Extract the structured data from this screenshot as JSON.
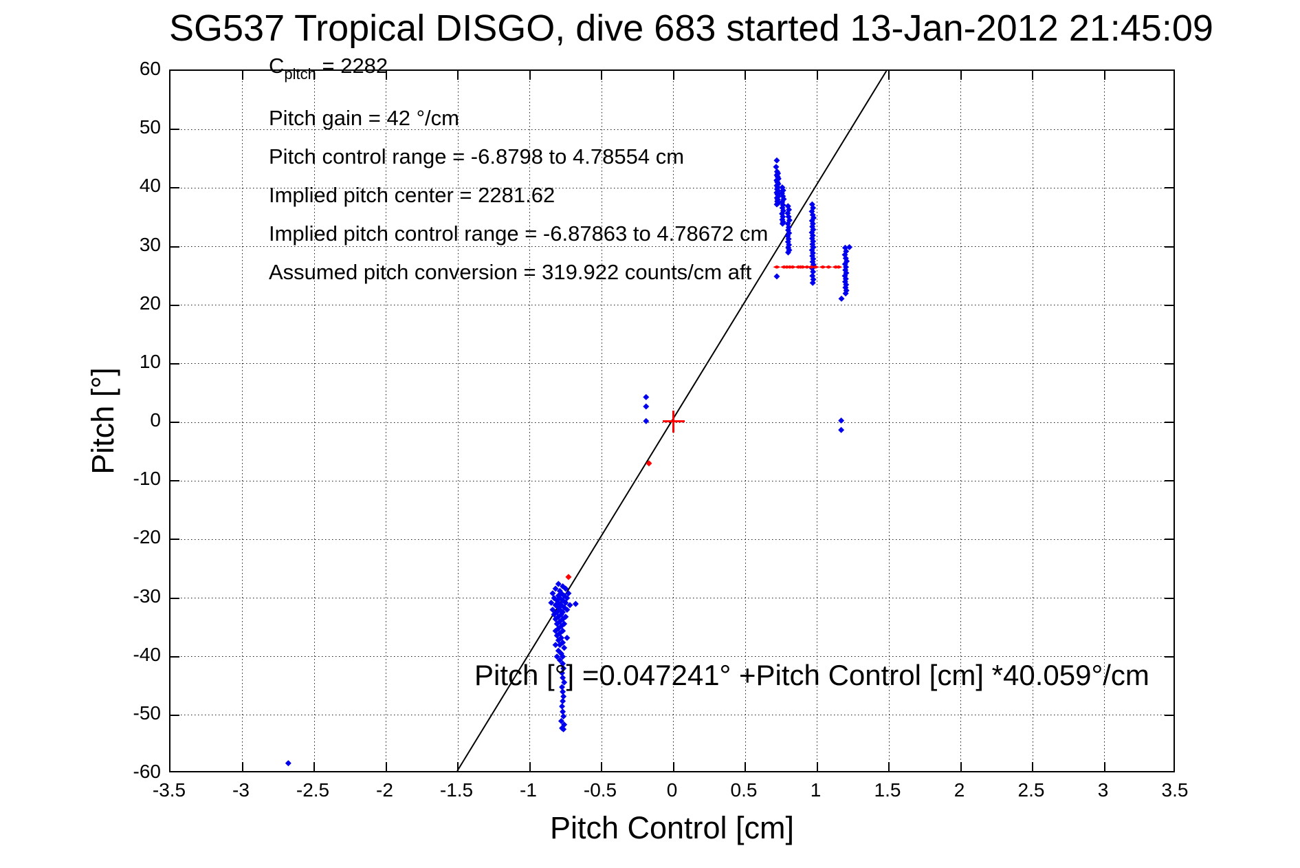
{
  "figure": {
    "title": "SG537 Tropical DISGO, dive 683 started 13-Jan-2012 21:45:09",
    "background_color": "#FFFFFF"
  },
  "chart_data": {
    "type": "scatter",
    "title": "SG537 Tropical DISGO, dive 683 started 13-Jan-2012 21:45:09",
    "xlabel": "Pitch Control [cm]",
    "ylabel": "Pitch [°]",
    "xlim": [
      -3.5,
      3.5
    ],
    "ylim": [
      -60,
      60
    ],
    "xticks": [
      -3.5,
      -3,
      -2.5,
      -2,
      -1.5,
      -1,
      -0.5,
      0,
      0.5,
      1,
      1.5,
      2,
      2.5,
      3,
      3.5
    ],
    "xtick_labels": [
      "-3.5",
      "-3",
      "-2.5",
      "-2",
      "-1.5",
      "-1",
      "-0.5",
      "0",
      "0.5",
      "1",
      "1.5",
      "2",
      "2.5",
      "3",
      "3.5"
    ],
    "yticks": [
      60,
      50,
      40,
      30,
      20,
      10,
      0,
      -10,
      -20,
      -30,
      -40,
      -50,
      -60
    ],
    "ytick_labels": [
      "60",
      "50",
      "40",
      "30",
      "20",
      "10",
      "0",
      "-10",
      "-20",
      "-30",
      "-40",
      "-50",
      "-60"
    ],
    "grid": true,
    "legend_position": "none",
    "annotations": {
      "c_pitch": {
        "base": "C",
        "sub": "pitch",
        "rest": " = 2282"
      },
      "lines": [
        "Pitch gain = 42 °/cm",
        "Pitch control range = -6.8798 to 4.78554 cm",
        "Implied pitch center = 2281.62",
        "Implied pitch control range = -6.87863 to 4.78672 cm",
        "Assumed pitch conversion = 319.922 counts/cm aft"
      ]
    },
    "equation": "Pitch [°] =0.047241° +Pitch Control [cm] *40.059°/cm",
    "fit_line": {
      "intercept": 0.047241,
      "slope": 40.059,
      "x_start": -1.4989,
      "x_end": 1.4966,
      "color": "#000000"
    },
    "colors": {
      "data_points": "#0000EE",
      "highlight": "#FF0000",
      "fit": "#000000",
      "grid": "#1A1A1A"
    },
    "series": [
      {
        "name": "observed-pitch",
        "color": "#0000EE",
        "marker": "diamond",
        "points": [
          [
            0.72,
            44.7
          ],
          [
            0.715,
            43.6
          ],
          [
            0.722,
            42.8
          ],
          [
            0.728,
            42.5
          ],
          [
            0.72,
            42.2
          ],
          [
            0.726,
            41.9
          ],
          [
            0.732,
            41.6
          ],
          [
            0.718,
            41.3
          ],
          [
            0.724,
            41.0
          ],
          [
            0.73,
            40.7
          ],
          [
            0.72,
            40.4
          ],
          [
            0.727,
            40.1
          ],
          [
            0.722,
            39.8
          ],
          [
            0.729,
            39.5
          ],
          [
            0.719,
            39.2
          ],
          [
            0.725,
            38.9
          ],
          [
            0.731,
            38.6
          ],
          [
            0.721,
            38.3
          ],
          [
            0.727,
            38.0
          ],
          [
            0.723,
            37.7
          ],
          [
            0.729,
            37.4
          ],
          [
            0.72,
            37.2
          ],
          [
            0.758,
            40.1
          ],
          [
            0.764,
            39.6
          ],
          [
            0.756,
            39.1
          ],
          [
            0.762,
            38.6
          ],
          [
            0.768,
            38.1
          ],
          [
            0.757,
            37.6
          ],
          [
            0.763,
            37.1
          ],
          [
            0.759,
            36.6
          ],
          [
            0.765,
            36.1
          ],
          [
            0.756,
            35.6
          ],
          [
            0.762,
            35.1
          ],
          [
            0.758,
            34.6
          ],
          [
            0.764,
            34.2
          ],
          [
            0.76,
            33.9
          ],
          [
            0.798,
            36.9
          ],
          [
            0.804,
            36.3
          ],
          [
            0.796,
            35.7
          ],
          [
            0.802,
            35.1
          ],
          [
            0.808,
            34.5
          ],
          [
            0.797,
            33.9
          ],
          [
            0.803,
            33.3
          ],
          [
            0.799,
            32.8
          ],
          [
            0.805,
            32.3
          ],
          [
            0.796,
            31.8
          ],
          [
            0.802,
            31.3
          ],
          [
            0.798,
            30.8
          ],
          [
            0.804,
            30.3
          ],
          [
            0.8,
            29.8
          ],
          [
            0.806,
            29.4
          ],
          [
            0.799,
            29.0
          ],
          [
            0.966,
            37.2
          ],
          [
            0.972,
            36.6
          ],
          [
            0.964,
            36.0
          ],
          [
            0.97,
            35.4
          ],
          [
            0.976,
            34.9
          ],
          [
            0.965,
            34.4
          ],
          [
            0.971,
            33.9
          ],
          [
            0.967,
            33.4
          ],
          [
            0.973,
            32.9
          ],
          [
            0.964,
            32.4
          ],
          [
            0.97,
            31.9
          ],
          [
            0.966,
            31.4
          ],
          [
            0.972,
            30.9
          ],
          [
            0.968,
            30.4
          ],
          [
            0.974,
            29.9
          ],
          [
            0.965,
            29.4
          ],
          [
            0.971,
            28.9
          ],
          [
            0.967,
            28.4
          ],
          [
            0.973,
            27.9
          ],
          [
            0.969,
            27.4
          ],
          [
            0.975,
            26.9
          ],
          [
            0.966,
            26.3
          ],
          [
            0.972,
            25.7
          ],
          [
            0.968,
            25.0
          ],
          [
            0.974,
            24.4
          ],
          [
            0.97,
            23.8
          ],
          [
            1.196,
            29.8
          ],
          [
            1.202,
            29.2
          ],
          [
            1.194,
            28.6
          ],
          [
            1.2,
            28.0
          ],
          [
            1.206,
            27.5
          ],
          [
            1.195,
            27.0
          ],
          [
            1.201,
            26.5
          ],
          [
            1.197,
            26.0
          ],
          [
            1.203,
            25.5
          ],
          [
            1.194,
            25.0
          ],
          [
            1.2,
            24.5
          ],
          [
            1.196,
            24.0
          ],
          [
            1.202,
            23.5
          ],
          [
            1.198,
            23.0
          ],
          [
            1.204,
            22.5
          ],
          [
            1.199,
            22.0
          ],
          [
            1.225,
            29.9
          ],
          [
            1.17,
            21.1
          ],
          [
            0.72,
            24.9
          ],
          [
            1.168,
            0.3
          ],
          [
            1.168,
            -1.3
          ],
          [
            -0.19,
            4.3
          ],
          [
            -0.19,
            2.7
          ],
          [
            -0.19,
            0.2
          ],
          [
            -0.8,
            -27.6
          ],
          [
            -0.77,
            -28.0
          ],
          [
            -0.82,
            -28.4
          ],
          [
            -0.75,
            -28.4
          ],
          [
            -0.79,
            -28.8
          ],
          [
            -0.84,
            -29.2
          ],
          [
            -0.78,
            -29.2
          ],
          [
            -0.73,
            -29.2
          ],
          [
            -0.8,
            -29.6
          ],
          [
            -0.76,
            -29.6
          ],
          [
            -0.83,
            -30.0
          ],
          [
            -0.79,
            -30.0
          ],
          [
            -0.74,
            -30.0
          ],
          [
            -0.81,
            -30.4
          ],
          [
            -0.77,
            -30.4
          ],
          [
            -0.85,
            -30.8
          ],
          [
            -0.8,
            -30.8
          ],
          [
            -0.75,
            -30.8
          ],
          [
            -0.82,
            -31.2
          ],
          [
            -0.78,
            -31.2
          ],
          [
            -0.72,
            -31.2
          ],
          [
            -0.8,
            -31.6
          ],
          [
            -0.76,
            -31.6
          ],
          [
            -0.84,
            -32.0
          ],
          [
            -0.79,
            -32.0
          ],
          [
            -0.74,
            -32.0
          ],
          [
            -0.81,
            -32.4
          ],
          [
            -0.77,
            -32.4
          ],
          [
            -0.83,
            -32.8
          ],
          [
            -0.78,
            -32.8
          ],
          [
            -0.8,
            -33.2
          ],
          [
            -0.75,
            -33.2
          ],
          [
            -0.82,
            -33.6
          ],
          [
            -0.77,
            -33.6
          ],
          [
            -0.79,
            -34.0
          ],
          [
            -0.81,
            -34.4
          ],
          [
            -0.76,
            -34.4
          ],
          [
            -0.78,
            -34.8
          ],
          [
            -0.8,
            -35.2
          ],
          [
            -0.82,
            -35.6
          ],
          [
            -0.77,
            -35.6
          ],
          [
            -0.79,
            -36.0
          ],
          [
            -0.81,
            -36.4
          ],
          [
            -0.78,
            -36.8
          ],
          [
            -0.74,
            -36.8
          ],
          [
            -0.8,
            -37.2
          ],
          [
            -0.77,
            -37.6
          ],
          [
            -0.82,
            -38.0
          ],
          [
            -0.79,
            -38.0
          ],
          [
            -0.76,
            -38.5
          ],
          [
            -0.8,
            -39.0
          ],
          [
            -0.78,
            -39.5
          ],
          [
            -0.81,
            -40.0
          ],
          [
            -0.77,
            -40.0
          ],
          [
            -0.79,
            -40.6
          ],
          [
            -0.68,
            -31.0
          ],
          [
            -0.77,
            -41.2
          ],
          [
            -0.765,
            -42.0
          ],
          [
            -0.775,
            -42.8
          ],
          [
            -0.77,
            -43.6
          ],
          [
            -0.76,
            -44.4
          ],
          [
            -0.775,
            -45.2
          ],
          [
            -0.77,
            -46.0
          ],
          [
            -0.765,
            -46.8
          ],
          [
            -0.77,
            -47.6
          ],
          [
            -0.775,
            -48.5
          ],
          [
            -0.77,
            -49.4
          ],
          [
            -0.765,
            -50.2
          ],
          [
            -0.78,
            -51.0
          ],
          [
            -0.76,
            -51.6
          ],
          [
            -0.775,
            -52.2
          ],
          [
            -0.765,
            -52.4
          ],
          [
            -2.68,
            -58.2
          ]
        ]
      },
      {
        "name": "implied-control-dashes",
        "color": "#FF0000",
        "marker": "dash",
        "points": [
          [
            0.72,
            26.5
          ],
          [
            0.77,
            26.5
          ],
          [
            0.79,
            26.5
          ],
          [
            0.81,
            26.5
          ],
          [
            0.83,
            26.5
          ],
          [
            0.87,
            26.5
          ],
          [
            0.885,
            26.5
          ],
          [
            0.9,
            26.5
          ],
          [
            0.93,
            26.5
          ],
          [
            0.96,
            26.5
          ],
          [
            0.99,
            26.5
          ],
          [
            1.04,
            26.5
          ],
          [
            1.08,
            26.5
          ],
          [
            1.13,
            26.5
          ],
          [
            1.15,
            26.5
          ]
        ]
      },
      {
        "name": "highlight-dots",
        "color": "#FF0000",
        "marker": "diamond",
        "points": [
          [
            -0.17,
            -7.0
          ],
          [
            -0.73,
            -26.4
          ]
        ]
      },
      {
        "name": "pitch-center-cross",
        "color": "#FF0000",
        "marker": "plus",
        "points": [
          [
            0.0,
            0.15
          ]
        ]
      }
    ]
  }
}
